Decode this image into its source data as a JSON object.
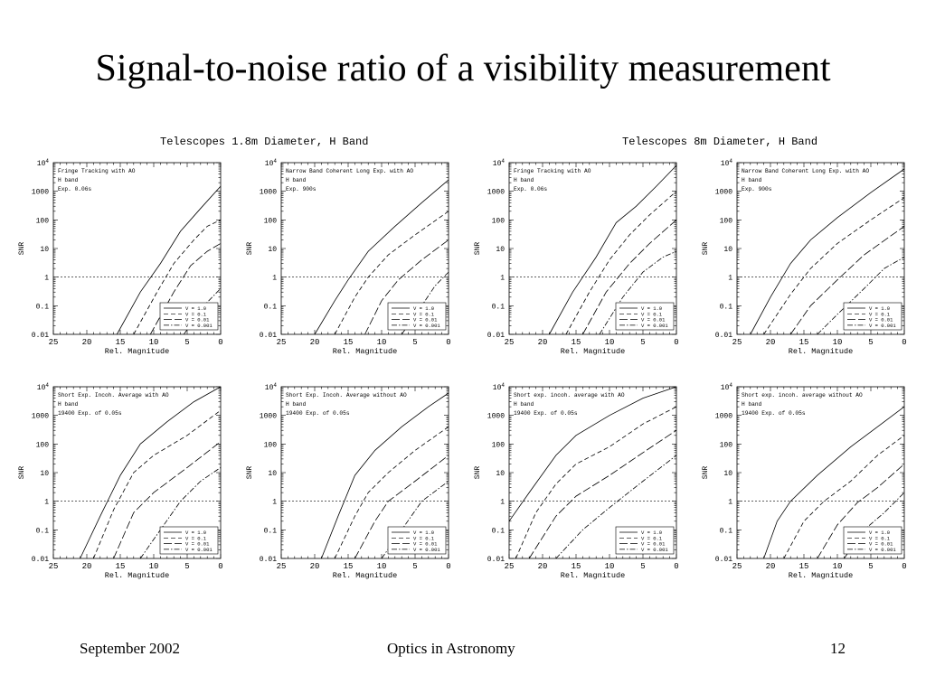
{
  "slide": {
    "title": "Signal-to-noise ratio of a visibility measurement",
    "footer_left": "September 2002",
    "footer_center": "Optics in Astronomy",
    "footer_right": "12"
  },
  "groups": [
    {
      "title": "Telescopes 1.8m Diameter, H Band"
    },
    {
      "title": "Telescopes 8m Diameter, H Band"
    }
  ],
  "common": {
    "xlabel": "Rel. Magnitude",
    "ylabel": "SNR",
    "xticks": [
      "25",
      "20",
      "15",
      "10",
      "5",
      "0"
    ],
    "yticks": [
      "0.01",
      "0.1",
      "1",
      "10",
      "100",
      "1000",
      "10^4"
    ]
  },
  "chart_data": [
    {
      "type": "line",
      "panel": "top-left",
      "annotation": [
        "Fringe Tracking with AO",
        "H band",
        "Exp. 0.06s"
      ],
      "xlim": [
        25,
        0
      ],
      "ylim": [
        0.01,
        10000
      ],
      "yscale": "log",
      "reference_line": {
        "y": 1,
        "style": "dotted"
      },
      "legend": "bottom-right",
      "series": [
        {
          "name": "V = 1.0",
          "style": "solid",
          "points": [
            [
              15.5,
              0.01
            ],
            [
              12,
              0.3
            ],
            [
              9,
              3
            ],
            [
              6,
              40
            ],
            [
              3,
              250
            ],
            [
              0,
              1500
            ]
          ]
        },
        {
          "name": "V = 0.1",
          "style": "dashed",
          "points": [
            [
              13,
              0.01
            ],
            [
              9.5,
              0.3
            ],
            [
              7,
              3
            ],
            [
              4,
              20
            ],
            [
              2,
              60
            ],
            [
              0,
              100
            ]
          ]
        },
        {
          "name": "V = 0.01",
          "style": "long-dash",
          "points": [
            [
              10.5,
              0.01
            ],
            [
              7,
              0.3
            ],
            [
              4.5,
              2.5
            ],
            [
              2,
              8
            ],
            [
              0,
              15
            ]
          ]
        },
        {
          "name": "V = 0.001",
          "style": "dash-dot",
          "points": [
            [
              5.5,
              0.01
            ],
            [
              2.5,
              0.1
            ],
            [
              0,
              0.4
            ]
          ]
        }
      ]
    },
    {
      "type": "line",
      "panel": "top-second",
      "annotation": [
        "Narrow Band Coherent Long Exp. with AO",
        "H band",
        "Exp. 900s"
      ],
      "xlim": [
        25,
        0
      ],
      "ylim": [
        0.01,
        10000
      ],
      "yscale": "log",
      "reference_line": {
        "y": 1,
        "style": "dotted"
      },
      "legend": "bottom-right",
      "series": [
        {
          "name": "V = 1.0",
          "style": "solid",
          "points": [
            [
              20,
              0.01
            ],
            [
              17,
              0.15
            ],
            [
              15,
              0.8
            ],
            [
              12,
              8
            ],
            [
              8,
              60
            ],
            [
              4,
              400
            ],
            [
              0,
              2500
            ]
          ]
        },
        {
          "name": "V = 0.1",
          "style": "dashed",
          "points": [
            [
              17,
              0.01
            ],
            [
              14,
              0.2
            ],
            [
              12,
              1
            ],
            [
              9,
              6
            ],
            [
              5,
              30
            ],
            [
              0,
              200
            ]
          ]
        },
        {
          "name": "V = 0.01",
          "style": "long-dash",
          "points": [
            [
              12.5,
              0.01
            ],
            [
              10,
              0.15
            ],
            [
              7.5,
              0.8
            ],
            [
              4,
              4
            ],
            [
              0,
              20
            ]
          ]
        },
        {
          "name": "V = 0.001",
          "style": "dash-dot",
          "points": [
            [
              7,
              0.01
            ],
            [
              4,
              0.1
            ],
            [
              2,
              0.5
            ],
            [
              0,
              1.5
            ]
          ]
        }
      ]
    },
    {
      "type": "line",
      "panel": "top-third",
      "annotation": [
        "Fringe Tracking with AO",
        "H band",
        "Exp. 0.06s"
      ],
      "xlim": [
        25,
        0
      ],
      "ylim": [
        0.01,
        10000
      ],
      "yscale": "log",
      "reference_line": {
        "y": 1,
        "style": "dotted"
      },
      "legend": "bottom-right",
      "series": [
        {
          "name": "V = 1.0",
          "style": "solid",
          "points": [
            [
              19,
              0.01
            ],
            [
              15.5,
              0.3
            ],
            [
              12,
              5
            ],
            [
              9,
              80
            ],
            [
              6,
              300
            ],
            [
              3,
              1500
            ],
            [
              0,
              8000
            ]
          ]
        },
        {
          "name": "V = 0.1",
          "style": "dashed",
          "points": [
            [
              16.5,
              0.01
            ],
            [
              13,
              0.3
            ],
            [
              10,
              4
            ],
            [
              7,
              30
            ],
            [
              4,
              150
            ],
            [
              0,
              1000
            ]
          ]
        },
        {
          "name": "V = 0.01",
          "style": "long-dash",
          "points": [
            [
              14,
              0.01
            ],
            [
              10.5,
              0.3
            ],
            [
              7,
              3
            ],
            [
              4,
              15
            ],
            [
              0,
              100
            ]
          ]
        },
        {
          "name": "V = 0.001",
          "style": "dash-dot",
          "points": [
            [
              11.5,
              0.01
            ],
            [
              8,
              0.2
            ],
            [
              5,
              1.5
            ],
            [
              2,
              5
            ],
            [
              0,
              8
            ]
          ]
        }
      ]
    },
    {
      "type": "line",
      "panel": "top-fourth",
      "annotation": [
        "Narrow Band Coherent Long Exp. with AO",
        "H band",
        "Exp. 900s"
      ],
      "xlim": [
        25,
        0
      ],
      "ylim": [
        0.01,
        10000
      ],
      "yscale": "log",
      "reference_line": {
        "y": 1,
        "style": "dotted"
      },
      "legend": "bottom-right",
      "series": [
        {
          "name": "V = 1.0",
          "style": "solid",
          "points": [
            [
              23,
              0.01
            ],
            [
              20,
              0.2
            ],
            [
              17,
              3
            ],
            [
              14,
              20
            ],
            [
              10,
              120
            ],
            [
              5,
              900
            ],
            [
              0,
              6000
            ]
          ]
        },
        {
          "name": "V = 0.1",
          "style": "dashed",
          "points": [
            [
              21,
              0.01
            ],
            [
              17,
              0.25
            ],
            [
              14,
              2
            ],
            [
              10,
              15
            ],
            [
              5,
              100
            ],
            [
              0,
              600
            ]
          ]
        },
        {
          "name": "V = 0.01",
          "style": "long-dash",
          "points": [
            [
              17,
              0.01
            ],
            [
              14,
              0.1
            ],
            [
              10,
              0.8
            ],
            [
              6,
              6
            ],
            [
              0,
              60
            ]
          ]
        },
        {
          "name": "V = 0.001",
          "style": "dash-dot",
          "points": [
            [
              13,
              0.01
            ],
            [
              10,
              0.05
            ],
            [
              6,
              0.4
            ],
            [
              3,
              2
            ],
            [
              0,
              5
            ]
          ]
        }
      ]
    },
    {
      "type": "line",
      "panel": "bottom-left",
      "annotation": [
        "Short Exp. Incoh. Average with AO",
        "H band",
        "19400 Exp. of 0.05s"
      ],
      "xlim": [
        25,
        0
      ],
      "ylim": [
        0.01,
        10000
      ],
      "yscale": "log",
      "reference_line": {
        "y": 1,
        "style": "dotted"
      },
      "legend": "bottom-right",
      "series": [
        {
          "name": "V = 1.0",
          "style": "solid",
          "points": [
            [
              21,
              0.01
            ],
            [
              18,
              0.3
            ],
            [
              15,
              8
            ],
            [
              12,
              100
            ],
            [
              8,
              600
            ],
            [
              4,
              3000
            ],
            [
              0,
              10000
            ]
          ]
        },
        {
          "name": "V = 0.1",
          "style": "dashed",
          "points": [
            [
              19,
              0.01
            ],
            [
              16,
              0.5
            ],
            [
              13,
              10
            ],
            [
              10,
              40
            ],
            [
              5,
              200
            ],
            [
              0,
              1500
            ]
          ]
        },
        {
          "name": "V = 0.01",
          "style": "long-dash",
          "points": [
            [
              16,
              0.01
            ],
            [
              13,
              0.4
            ],
            [
              10,
              2
            ],
            [
              5,
              15
            ],
            [
              0,
              120
            ]
          ]
        },
        {
          "name": "V = 0.001",
          "style": "dash-dot",
          "points": [
            [
              12,
              0.01
            ],
            [
              9,
              0.1
            ],
            [
              6,
              1
            ],
            [
              3,
              5
            ],
            [
              0,
              15
            ]
          ]
        }
      ]
    },
    {
      "type": "line",
      "panel": "bottom-second",
      "annotation": [
        "Short Exp. Incoh. Average without AO",
        "H band",
        "19400 Exp. of 0.05s"
      ],
      "xlim": [
        25,
        0
      ],
      "ylim": [
        0.01,
        10000
      ],
      "yscale": "log",
      "reference_line": {
        "y": 1,
        "style": "dotted"
      },
      "legend": "bottom-right",
      "series": [
        {
          "name": "V = 1.0",
          "style": "solid",
          "points": [
            [
              19,
              0.01
            ],
            [
              16.5,
              0.3
            ],
            [
              14,
              8
            ],
            [
              11,
              60
            ],
            [
              7,
              400
            ],
            [
              3,
              2000
            ],
            [
              0,
              6000
            ]
          ]
        },
        {
          "name": "V = 0.1",
          "style": "dashed",
          "points": [
            [
              17,
              0.01
            ],
            [
              14,
              0.3
            ],
            [
              12,
              2
            ],
            [
              9,
              10
            ],
            [
              5,
              60
            ],
            [
              0,
              400
            ]
          ]
        },
        {
          "name": "V = 0.01",
          "style": "long-dash",
          "points": [
            [
              14,
              0.01
            ],
            [
              11,
              0.2
            ],
            [
              9,
              1
            ],
            [
              5,
              5
            ],
            [
              0,
              40
            ]
          ]
        },
        {
          "name": "V = 0.001",
          "style": "dash-dot",
          "points": [
            [
              10,
              0.01
            ],
            [
              7,
              0.1
            ],
            [
              4,
              1
            ],
            [
              0,
              5
            ]
          ]
        }
      ]
    },
    {
      "type": "line",
      "panel": "bottom-third",
      "annotation": [
        "Short exp. incoh. average with AO",
        "H band",
        "19400 Exp. of 0.05s"
      ],
      "xlim": [
        25,
        0
      ],
      "ylim": [
        0.01,
        10000
      ],
      "yscale": "log",
      "reference_line": {
        "y": 1,
        "style": "dotted"
      },
      "legend": "bottom-right",
      "series": [
        {
          "name": "V = 1.0",
          "style": "solid",
          "points": [
            [
              25,
              0.2
            ],
            [
              22,
              2
            ],
            [
              18,
              40
            ],
            [
              15,
              200
            ],
            [
              10,
              1000
            ],
            [
              5,
              4000
            ],
            [
              0,
              10000
            ]
          ]
        },
        {
          "name": "V = 0.1",
          "style": "dashed",
          "points": [
            [
              24,
              0.01
            ],
            [
              21,
              0.4
            ],
            [
              18,
              4
            ],
            [
              15,
              20
            ],
            [
              10,
              80
            ],
            [
              5,
              500
            ],
            [
              0,
              2000
            ]
          ]
        },
        {
          "name": "V = 0.01",
          "style": "long-dash",
          "points": [
            [
              22,
              0.01
            ],
            [
              18,
              0.3
            ],
            [
              15,
              1.5
            ],
            [
              10,
              8
            ],
            [
              5,
              50
            ],
            [
              0,
              300
            ]
          ]
        },
        {
          "name": "V = 0.001",
          "style": "dash-dot",
          "points": [
            [
              18,
              0.01
            ],
            [
              14,
              0.1
            ],
            [
              10,
              0.6
            ],
            [
              5,
              5
            ],
            [
              0,
              40
            ]
          ]
        }
      ]
    },
    {
      "type": "line",
      "panel": "bottom-fourth",
      "annotation": [
        "Short exp. incoh. average without AO",
        "H band",
        "19400 Exp. of 0.05s"
      ],
      "xlim": [
        25,
        0
      ],
      "ylim": [
        0.01,
        10000
      ],
      "yscale": "log",
      "reference_line": {
        "y": 1,
        "style": "dotted"
      },
      "legend": "bottom-right",
      "series": [
        {
          "name": "V = 1.0",
          "style": "solid",
          "points": [
            [
              21,
              0.01
            ],
            [
              19,
              0.2
            ],
            [
              17,
              1
            ],
            [
              13,
              8
            ],
            [
              8,
              80
            ],
            [
              4,
              400
            ],
            [
              0,
              2000
            ]
          ]
        },
        {
          "name": "V = 0.1",
          "style": "dashed",
          "points": [
            [
              18,
              0.01
            ],
            [
              15,
              0.2
            ],
            [
              12,
              1
            ],
            [
              8,
              5
            ],
            [
              4,
              40
            ],
            [
              0,
              200
            ]
          ]
        },
        {
          "name": "V = 0.01",
          "style": "long-dash",
          "points": [
            [
              13,
              0.01
            ],
            [
              10,
              0.15
            ],
            [
              7,
              0.9
            ],
            [
              4,
              3
            ],
            [
              0,
              20
            ]
          ]
        },
        {
          "name": "V = 0.001",
          "style": "dash-dot",
          "points": [
            [
              9,
              0.01
            ],
            [
              6,
              0.1
            ],
            [
              3,
              0.4
            ],
            [
              0,
              2
            ]
          ]
        }
      ]
    }
  ]
}
